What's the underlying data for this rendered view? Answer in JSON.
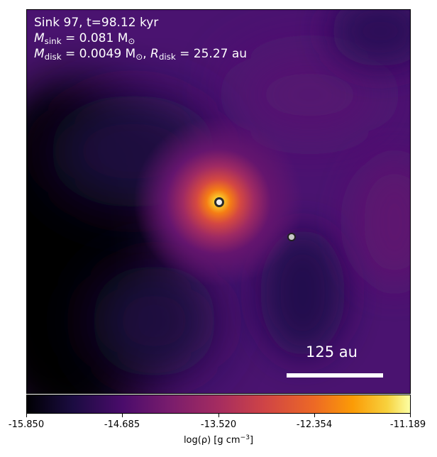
{
  "panel": {
    "title": "Sink 97, t=98.12 kyr",
    "m_sink_value": " = 0.081 M",
    "m_disk_value": " = 0.0049 M",
    "r_disk_value": " = 25.27 au",
    "sub_sink": "sink",
    "sub_disk": "disk",
    "sub_sun": "⊙"
  },
  "scalebar": {
    "label": "125 au"
  },
  "colorbar": {
    "ticks": [
      "-15.850",
      "-14.685",
      "-13.520",
      "-12.354",
      "-11.189"
    ],
    "label_prefix": "log(ρ) [g cm",
    "label_exp": "−3",
    "label_suffix": "]",
    "colormap": "inferno"
  }
}
